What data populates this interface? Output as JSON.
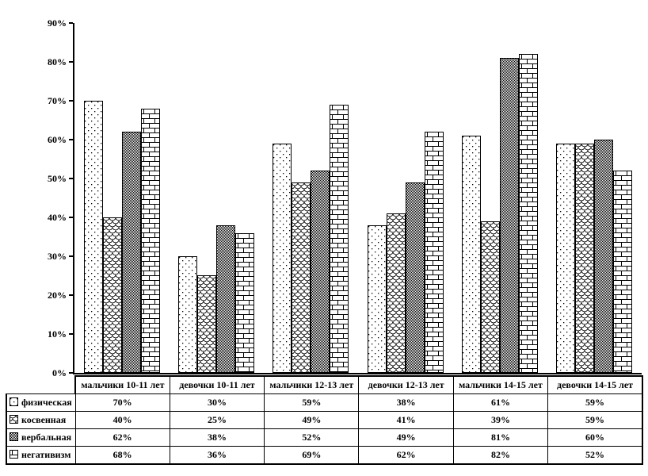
{
  "page": {
    "background": "#ffffff"
  },
  "chart_data": {
    "type": "bar",
    "title": "",
    "xlabel": "",
    "ylabel": "",
    "categories": [
      "мальчики 10-11 лет",
      "девочки 10-11 лет",
      "мальчики 12-13 лет",
      "девочки 12-13 лет",
      "мальчики 14-15 лет",
      "девочки 14-15 лет"
    ],
    "series": [
      {
        "name": "физическая",
        "icon": "dots-pattern-icon",
        "pattern": "dots",
        "values": [
          70,
          30,
          59,
          38,
          61,
          59
        ]
      },
      {
        "name": "косвенная",
        "icon": "scales-pattern-icon",
        "pattern": "scales",
        "values": [
          40,
          25,
          49,
          41,
          39,
          59
        ]
      },
      {
        "name": "вербальная",
        "icon": "checker-pattern-icon",
        "pattern": "checker",
        "values": [
          62,
          38,
          52,
          49,
          81,
          60
        ]
      },
      {
        "name": "негативизм",
        "icon": "bricks-pattern-icon",
        "pattern": "bricks",
        "values": [
          68,
          36,
          69,
          62,
          82,
          52
        ]
      }
    ],
    "value_suffix": "%",
    "ylim": [
      0,
      90
    ],
    "y_tick_labels": [
      "0%",
      "10%",
      "20%",
      "30%",
      "40%",
      "50%",
      "60%",
      "70%",
      "80%",
      "90%"
    ],
    "grid": false,
    "legend_position": "data-table-left-column",
    "colors": {
      "background": "#ffffff",
      "axis": "#000000",
      "bar_outline": "#000000",
      "pattern_ink": "#000000",
      "pattern_paper": "#ffffff"
    }
  }
}
